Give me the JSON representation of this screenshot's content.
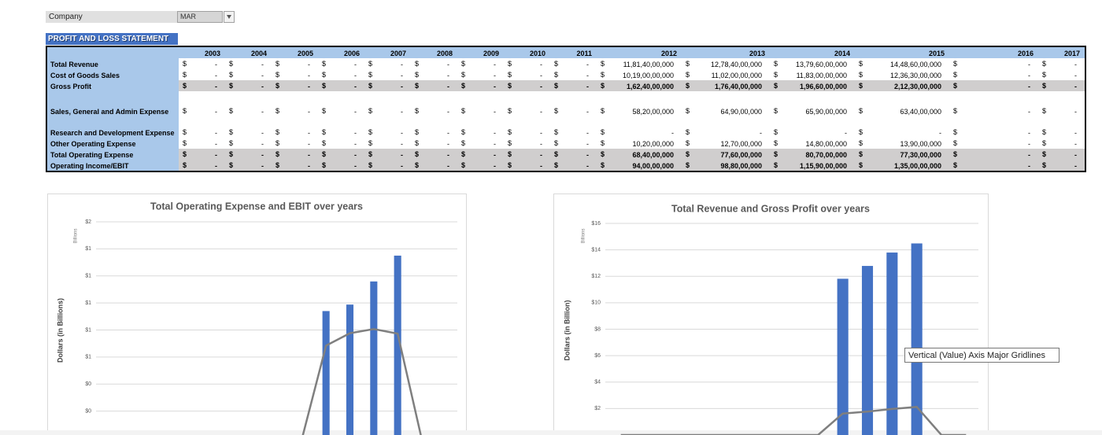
{
  "company": {
    "label": "Company",
    "value": "MAR"
  },
  "table": {
    "title": "PROFIT AND LOSS STATEMENT",
    "currency": "$",
    "years": [
      "2003",
      "2004",
      "2005",
      "2006",
      "2007",
      "2008",
      "2009",
      "2010",
      "2011",
      "2012",
      "2013",
      "2014",
      "2015",
      "2016",
      "2017"
    ],
    "rows": [
      {
        "label": "Total Revenue",
        "total": false,
        "values": [
          "-",
          "-",
          "-",
          "-",
          "-",
          "-",
          "-",
          "-",
          "-",
          "11,81,40,00,000",
          "12,78,40,00,000",
          "13,79,60,00,000",
          "14,48,60,00,000",
          "-",
          "-"
        ]
      },
      {
        "label": "Cost of Goods Sales",
        "total": false,
        "values": [
          "-",
          "-",
          "-",
          "-",
          "-",
          "-",
          "-",
          "-",
          "-",
          "10,19,00,00,000",
          "11,02,00,00,000",
          "11,83,00,00,000",
          "12,36,30,00,000",
          "-",
          "-"
        ]
      },
      {
        "label": "Gross Profit",
        "total": true,
        "values": [
          "-",
          "-",
          "-",
          "-",
          "-",
          "-",
          "-",
          "-",
          "-",
          "1,62,40,00,000",
          "1,76,40,00,000",
          "1,96,60,00,000",
          "2,12,30,00,000",
          "-",
          "-"
        ]
      },
      {
        "label": "Sales, General and Admin Expense",
        "total": false,
        "values": [
          "-",
          "-",
          "-",
          "-",
          "-",
          "-",
          "-",
          "-",
          "-",
          "58,20,00,000",
          "64,90,00,000",
          "65,90,00,000",
          "63,40,00,000",
          "-",
          "-"
        ]
      },
      {
        "label": "Research and Development Expense",
        "total": false,
        "values": [
          "-",
          "-",
          "-",
          "-",
          "-",
          "-",
          "-",
          "-",
          "-",
          "-",
          "-",
          "-",
          "-",
          "-",
          "-"
        ]
      },
      {
        "label": "Other Operating Expense",
        "total": false,
        "values": [
          "-",
          "-",
          "-",
          "-",
          "-",
          "-",
          "-",
          "-",
          "-",
          "10,20,00,000",
          "12,70,00,000",
          "14,80,00,000",
          "13,90,00,000",
          "-",
          "-"
        ]
      },
      {
        "label": "Total Operating Expense",
        "total": true,
        "values": [
          "-",
          "-",
          "-",
          "-",
          "-",
          "-",
          "-",
          "-",
          "-",
          "68,40,00,000",
          "77,60,00,000",
          "80,70,00,000",
          "77,30,00,000",
          "-",
          "-"
        ]
      },
      {
        "label": "Operating Income/EBIT",
        "total": true,
        "values": [
          "-",
          "-",
          "-",
          "-",
          "-",
          "-",
          "-",
          "-",
          "-",
          "94,00,00,000",
          "98,80,00,000",
          "1,15,90,00,000",
          "1,35,00,00,000",
          "-",
          "-"
        ]
      }
    ]
  },
  "chart_data": [
    {
      "type": "combo",
      "title": "Total Operating Expense and EBIT over years",
      "y_label": "Dollars (in Billions)",
      "units_label": "Billions",
      "categories": [
        null,
        null,
        null,
        null,
        null,
        null,
        null,
        null,
        null,
        null,
        null,
        null,
        null,
        null,
        null
      ],
      "series": [
        {
          "type": "bar",
          "color": "#4472c4",
          "values": [
            0,
            0,
            0,
            0,
            0,
            0,
            0,
            0,
            0,
            0.94,
            0.988,
            1.159,
            1.35,
            0,
            0
          ]
        },
        {
          "type": "line",
          "color": "#7f7f7f",
          "values": [
            0,
            0,
            0,
            0,
            0,
            0,
            0,
            0,
            0,
            0.684,
            0.776,
            0.807,
            0.773,
            0,
            0
          ]
        }
      ],
      "ylim": [
        0,
        1.6
      ],
      "yticks": [
        {
          "value": 0.2,
          "label": "$0"
        },
        {
          "value": 0.4,
          "label": "$0"
        },
        {
          "value": 0.6,
          "label": "$1"
        },
        {
          "value": 0.8,
          "label": "$1"
        },
        {
          "value": 1.0,
          "label": "$1"
        },
        {
          "value": 1.2,
          "label": "$1"
        },
        {
          "value": 1.4,
          "label": "$1"
        },
        {
          "value": 1.6,
          "label": "$2"
        }
      ],
      "grid": true
    },
    {
      "type": "combo",
      "title": "Total Revenue and Gross Profit over years",
      "y_label": "Dollars (in Billion)",
      "units_label": "Billions",
      "categories": [
        null,
        null,
        null,
        null,
        null,
        null,
        null,
        null,
        null,
        null,
        null,
        null,
        null,
        null,
        null
      ],
      "series": [
        {
          "type": "bar",
          "color": "#4472c4",
          "values": [
            0,
            0,
            0,
            0,
            0,
            0,
            0,
            0,
            0,
            11.814,
            12.784,
            13.796,
            14.486,
            0,
            0
          ]
        },
        {
          "type": "line",
          "color": "#7f7f7f",
          "values": [
            0,
            0,
            0,
            0,
            0,
            0,
            0,
            0,
            0,
            1.624,
            1.764,
            1.966,
            2.123,
            0,
            0
          ]
        }
      ],
      "ylim": [
        0,
        16
      ],
      "yticks": [
        {
          "value": 2,
          "label": "$2"
        },
        {
          "value": 4,
          "label": "$4"
        },
        {
          "value": 6,
          "label": "$6"
        },
        {
          "value": 8,
          "label": "$8"
        },
        {
          "value": 10,
          "label": "$10"
        },
        {
          "value": 12,
          "label": "$12"
        },
        {
          "value": 14,
          "label": "$14"
        },
        {
          "value": 16,
          "label": "$16"
        }
      ],
      "grid": true
    }
  ],
  "tooltip": "Vertical (Value) Axis Major Gridlines"
}
